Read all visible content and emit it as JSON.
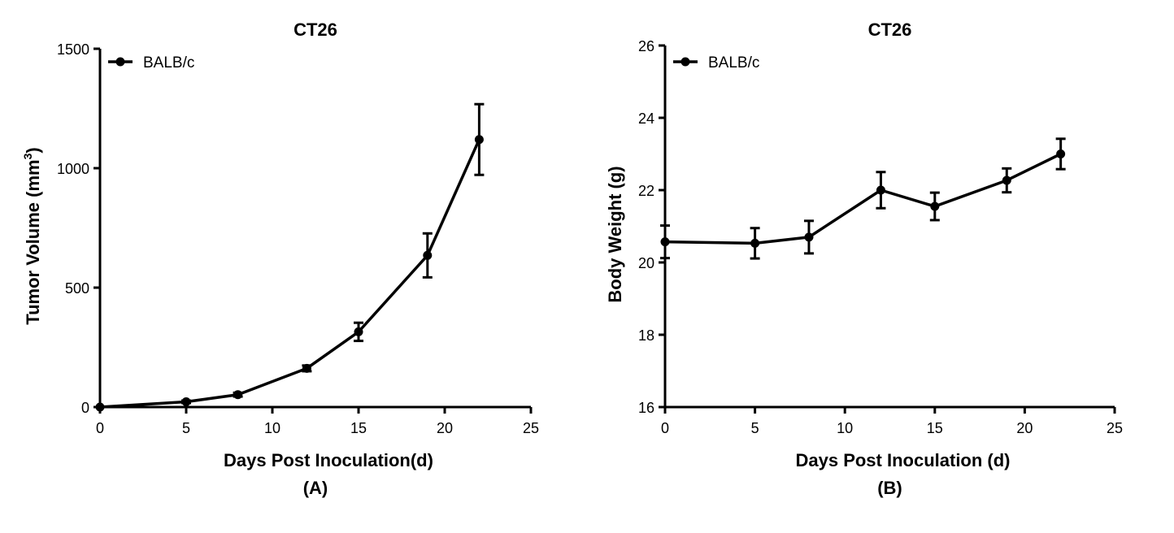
{
  "chart_data": [
    {
      "type": "line",
      "title": "CT26",
      "xlabel": "Days Post Inoculation(d)",
      "ylabel": "Tumor Volume (mm",
      "ylabel_sup": "3",
      "ylabel_close": ")",
      "panel_label": "(A)",
      "xlim": [
        0,
        25
      ],
      "ylim": [
        0,
        1500
      ],
      "x_ticks": [
        0,
        5,
        10,
        15,
        20,
        25
      ],
      "x_tick_labels": [
        "0",
        "5",
        "10",
        "15",
        "20",
        "25"
      ],
      "y_ticks": [
        0,
        500,
        1000,
        1500
      ],
      "y_tick_labels": [
        "0",
        "500",
        "1000",
        "1500"
      ],
      "legend_position": "top-left",
      "series": [
        {
          "name": "BALB/c",
          "x": [
            0,
            5,
            8,
            12,
            15,
            19,
            22
          ],
          "y": [
            0,
            22,
            52,
            162,
            315,
            635,
            1120
          ],
          "error": [
            0,
            5,
            8,
            12,
            38,
            92,
            148
          ]
        }
      ]
    },
    {
      "type": "line",
      "title": "CT26",
      "xlabel": "Days Post Inoculation (d)",
      "ylabel": "Body Weight (g)",
      "panel_label": "(B)",
      "xlim": [
        0,
        25
      ],
      "ylim": [
        16,
        26
      ],
      "x_ticks": [
        0,
        5,
        10,
        15,
        20,
        25
      ],
      "x_tick_labels": [
        "0",
        "5",
        "10",
        "15",
        "20",
        "25"
      ],
      "y_ticks": [
        16,
        18,
        20,
        22,
        24,
        26
      ],
      "y_tick_labels": [
        "16",
        "18",
        "20",
        "22",
        "24",
        "26"
      ],
      "legend_position": "top-left",
      "series": [
        {
          "name": "BALB/c",
          "x": [
            0,
            5,
            8,
            12,
            15,
            19,
            22
          ],
          "y": [
            20.57,
            20.53,
            20.7,
            22.0,
            21.55,
            22.27,
            23.0
          ],
          "error": [
            0.45,
            0.42,
            0.45,
            0.5,
            0.38,
            0.33,
            0.42
          ]
        }
      ]
    }
  ]
}
